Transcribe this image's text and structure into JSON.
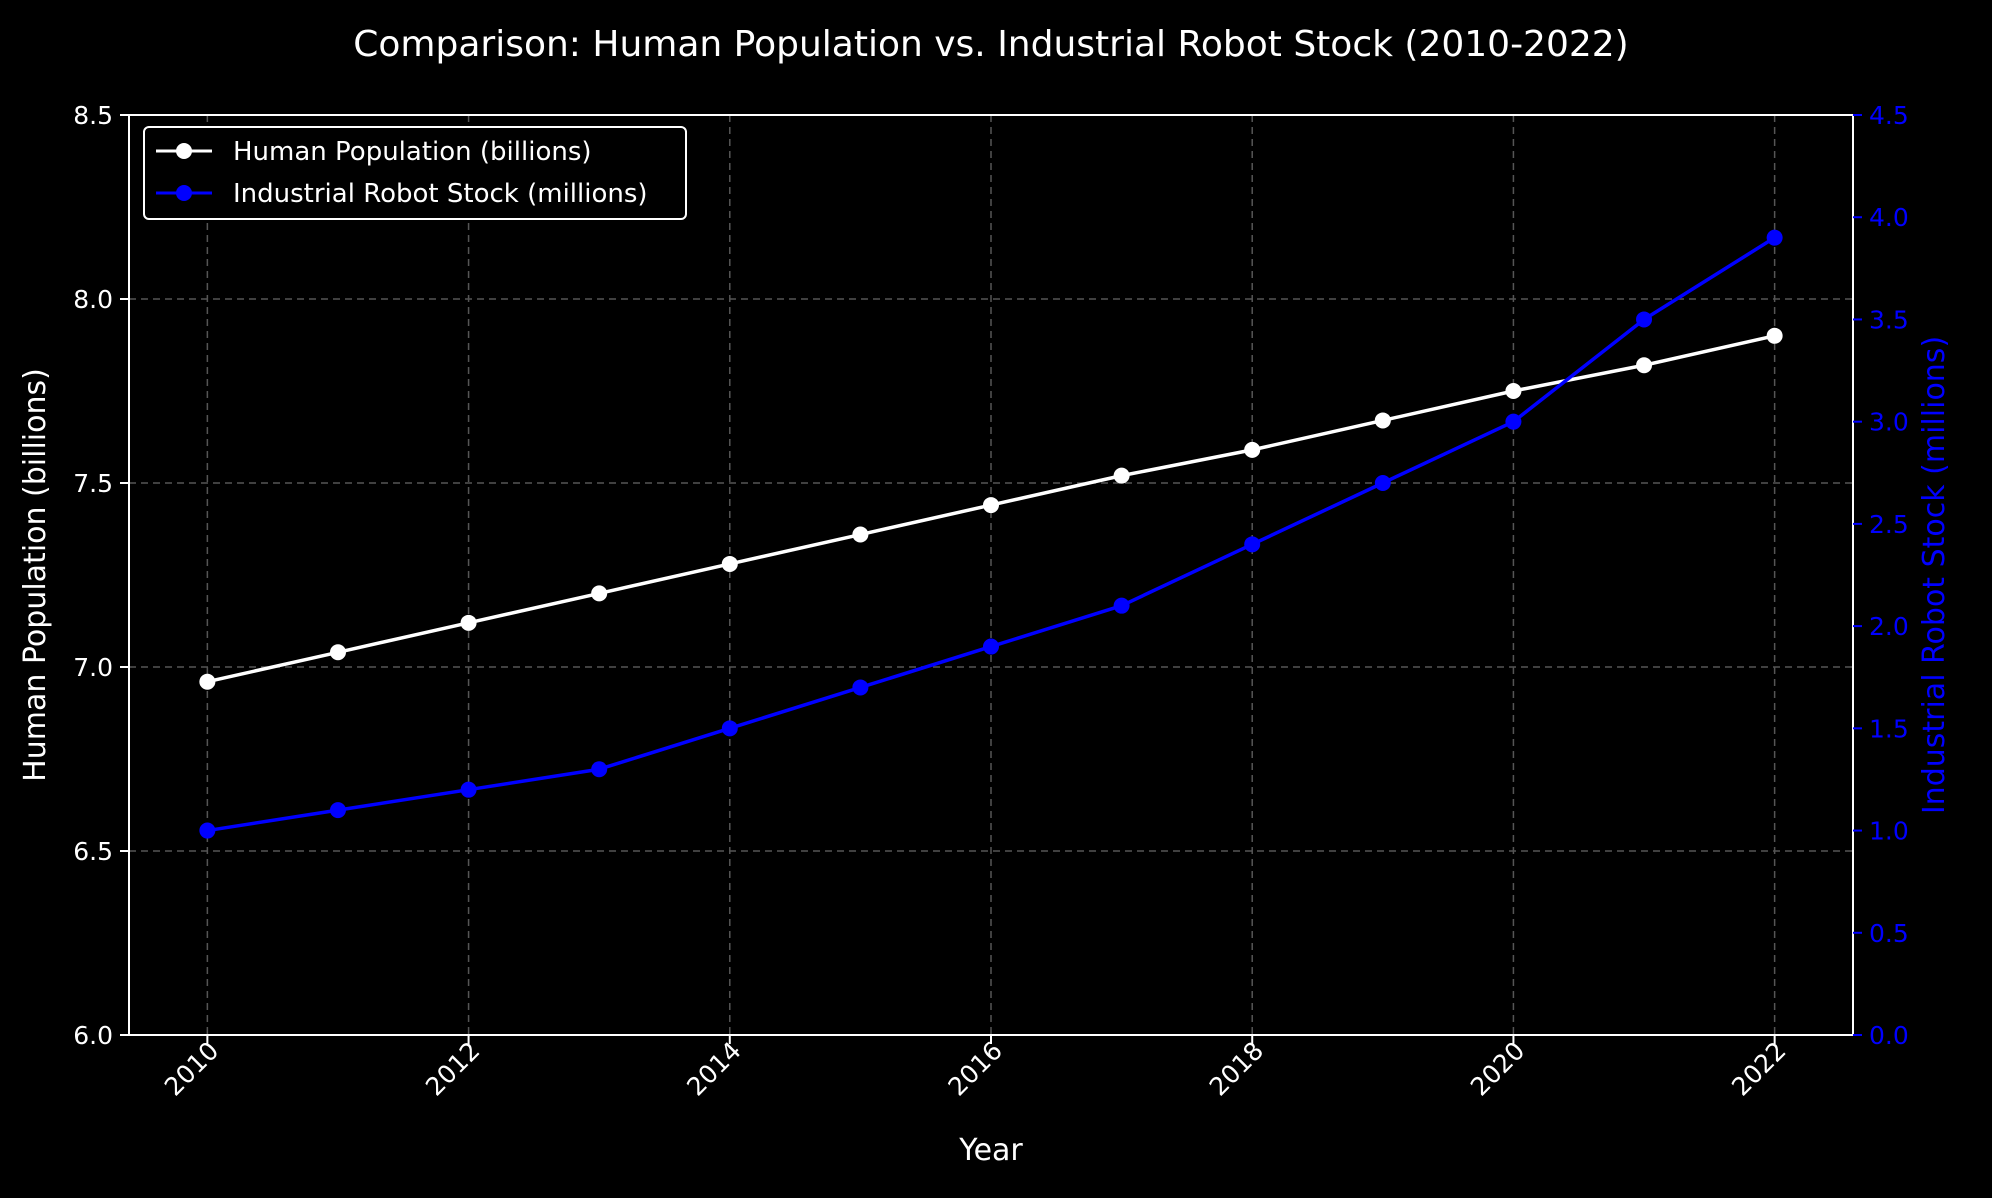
{
  "chart_data": {
    "type": "line",
    "title": "Comparison: Human Population vs. Industrial Robot Stock (2010-2022)",
    "xlabel": "Year",
    "ylabel_left": "Human Population (billions)",
    "ylabel_right": "Industrial Robot Stock (millions)",
    "x": [
      2010,
      2011,
      2012,
      2013,
      2014,
      2015,
      2016,
      2017,
      2018,
      2019,
      2020,
      2021,
      2022
    ],
    "xlim": [
      2009.4,
      2022.6
    ],
    "x_ticks": [
      "2010",
      "2012",
      "2014",
      "2016",
      "2018",
      "2020",
      "2022"
    ],
    "ylim_left": [
      6.0,
      8.5
    ],
    "y_ticks_left": [
      "6.0",
      "6.5",
      "7.0",
      "7.5",
      "8.0",
      "8.5"
    ],
    "ylim_right": [
      0.0,
      4.5
    ],
    "y_ticks_right": [
      "0.0",
      "0.5",
      "1.0",
      "1.5",
      "2.0",
      "2.5",
      "3.0",
      "3.5",
      "4.0",
      "4.5"
    ],
    "grid": true,
    "legend_position": "top-left",
    "series": [
      {
        "name": "Human Population (billions)",
        "axis": "left",
        "color": "#ffffff",
        "values": [
          6.96,
          7.04,
          7.12,
          7.2,
          7.28,
          7.36,
          7.44,
          7.52,
          7.59,
          7.67,
          7.75,
          7.82,
          7.9
        ]
      },
      {
        "name": "Industrial Robot Stock (millions)",
        "axis": "right",
        "color": "#0000ff",
        "values": [
          1.0,
          1.1,
          1.2,
          1.3,
          1.5,
          1.7,
          1.9,
          2.1,
          2.4,
          2.7,
          3.0,
          3.5,
          3.9
        ]
      }
    ]
  },
  "colors": {
    "background": "#000000",
    "foreground": "#ffffff",
    "grid": "#555555",
    "right_axis": "#0000ff"
  }
}
